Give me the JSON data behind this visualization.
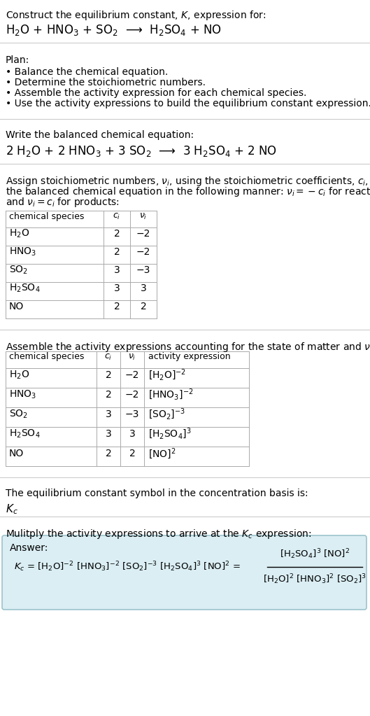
{
  "title_line1": "Construct the equilibrium constant, $K$, expression for:",
  "reaction_unbalanced": "H$_2$O + HNO$_3$ + SO$_2$  ⟶  H$_2$SO$_4$ + NO",
  "plan_header": "Plan:",
  "plan_items": [
    "• Balance the chemical equation.",
    "• Determine the stoichiometric numbers.",
    "• Assemble the activity expression for each chemical species.",
    "• Use the activity expressions to build the equilibrium constant expression."
  ],
  "balanced_header": "Write the balanced chemical equation:",
  "reaction_balanced": "2 H$_2$O + 2 HNO$_3$ + 3 SO$_2$  ⟶  3 H$_2$SO$_4$ + 2 NO",
  "stoich_lines": [
    "Assign stoichiometric numbers, $\\nu_i$, using the stoichiometric coefficients, $c_i$, from",
    "the balanced chemical equation in the following manner: $\\nu_i = -c_i$ for reactants",
    "and $\\nu_i = c_i$ for products:"
  ],
  "table1_headers": [
    "chemical species",
    "$c_i$",
    "$\\nu_i$"
  ],
  "table1_rows": [
    [
      "H$_2$O",
      "2",
      "−2"
    ],
    [
      "HNO$_3$",
      "2",
      "−2"
    ],
    [
      "SO$_2$",
      "3",
      "−3"
    ],
    [
      "H$_2$SO$_4$",
      "3",
      "3"
    ],
    [
      "NO",
      "2",
      "2"
    ]
  ],
  "activity_header": "Assemble the activity expressions accounting for the state of matter and $\\nu_i$:",
  "table2_headers": [
    "chemical species",
    "$c_i$",
    "$\\nu_i$",
    "activity expression"
  ],
  "table2_rows": [
    [
      "H$_2$O",
      "2",
      "−2",
      "[H$_2$O]$^{-2}$"
    ],
    [
      "HNO$_3$",
      "2",
      "−2",
      "[HNO$_3$]$^{-2}$"
    ],
    [
      "SO$_2$",
      "3",
      "−3",
      "[SO$_2$]$^{-3}$"
    ],
    [
      "H$_2$SO$_4$",
      "3",
      "3",
      "[H$_2$SO$_4$]$^3$"
    ],
    [
      "NO",
      "2",
      "2",
      "[NO]$^2$"
    ]
  ],
  "kc_symbol_header": "The equilibrium constant symbol in the concentration basis is:",
  "kc_symbol": "$K_c$",
  "multiply_header": "Mulitply the activity expressions to arrive at the $K_c$ expression:",
  "answer_label": "Answer:",
  "answer_box_color": "#daeef3",
  "answer_box_edge": "#9dc3cc",
  "bg_color": "#ffffff",
  "text_color": "#000000",
  "table_line_color": "#aaaaaa",
  "font_size": 10,
  "font_size_small": 9
}
